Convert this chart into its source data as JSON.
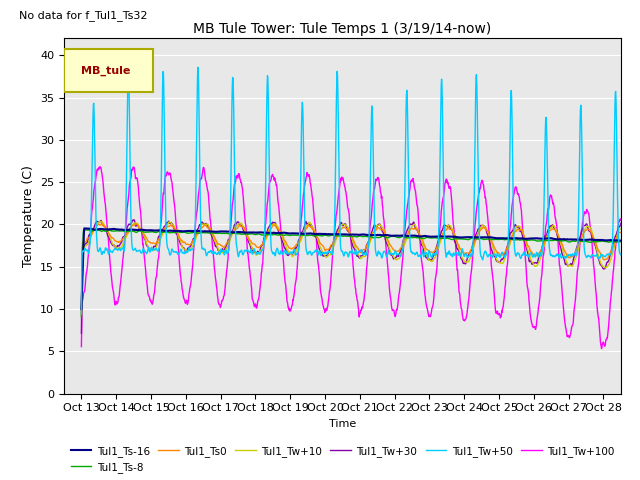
{
  "title": "MB Tule Tower: Tule Temps 1 (3/19/14-now)",
  "subtitle": "No data for f_Tul1_Ts32",
  "ylabel": "Temperature (C)",
  "xlabel": "Time",
  "xlim_days": [
    12.5,
    28.5
  ],
  "ylim": [
    0,
    42
  ],
  "yticks": [
    0,
    5,
    10,
    15,
    20,
    25,
    30,
    35,
    40
  ],
  "bg_color": "#e8e8e8",
  "legend_box_color": "#ffffcc",
  "legend_box_edge": "#aaaa00",
  "legend_label_color": "#990000",
  "legend_label": "MB_tule",
  "series_colors": {
    "Tul1_Ts-16": "#00008B",
    "Tul1_Ts-8": "#00aa00",
    "Tul1_Ts0": "#ff8800",
    "Tul1_Tw+10": "#cccc00",
    "Tul1_Tw+30": "#8800aa",
    "Tul1_Tw+50": "#00ccff",
    "Tul1_Tw+100": "#ff00ff"
  },
  "x_tick_labels": [
    "Oct 13",
    "Oct 14",
    "Oct 15",
    "Oct 16",
    "Oct 17",
    "Oct 18",
    "Oct 19",
    "Oct 20",
    "Oct 21",
    "Oct 22",
    "Oct 23",
    "Oct 24",
    "Oct 25",
    "Oct 26",
    "Oct 27",
    "Oct 28"
  ],
  "x_tick_positions": [
    13,
    14,
    15,
    16,
    17,
    18,
    19,
    20,
    21,
    22,
    23,
    24,
    25,
    26,
    27,
    28
  ]
}
